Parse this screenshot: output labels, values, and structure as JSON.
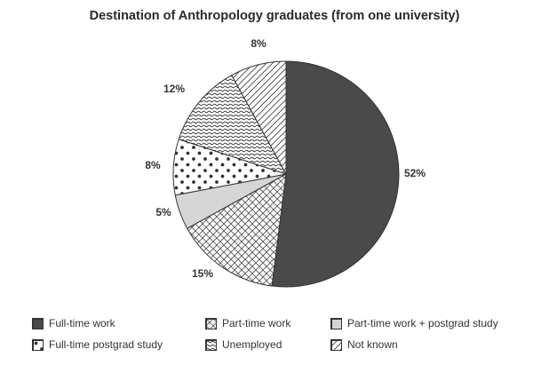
{
  "chart_data": {
    "type": "pie",
    "title": "Destination of Anthropology graduates (from one university)",
    "start_angle_deg": 0,
    "direction": "clockwise",
    "slices": [
      {
        "label": "Full-time work",
        "value": 52,
        "value_label": "52%",
        "pattern": "solid-dark"
      },
      {
        "label": "Part-time work",
        "value": 15,
        "value_label": "15%",
        "pattern": "crosshatch"
      },
      {
        "label": "Part-time work + postgrad study",
        "value": 5,
        "value_label": "5%",
        "pattern": "solid-light"
      },
      {
        "label": "Full-time postgrad study",
        "value": 8,
        "value_label": "8%",
        "pattern": "dots"
      },
      {
        "label": "Unemployed",
        "value": 12,
        "value_label": "12%",
        "pattern": "wavy"
      },
      {
        "label": "Not known",
        "value": 8,
        "value_label": "8%",
        "pattern": "diagonal"
      }
    ],
    "colors": {
      "dark": "#4a4a4a",
      "light": "#d6d6d6",
      "stroke": "#333333",
      "background": "#ffffff"
    }
  }
}
